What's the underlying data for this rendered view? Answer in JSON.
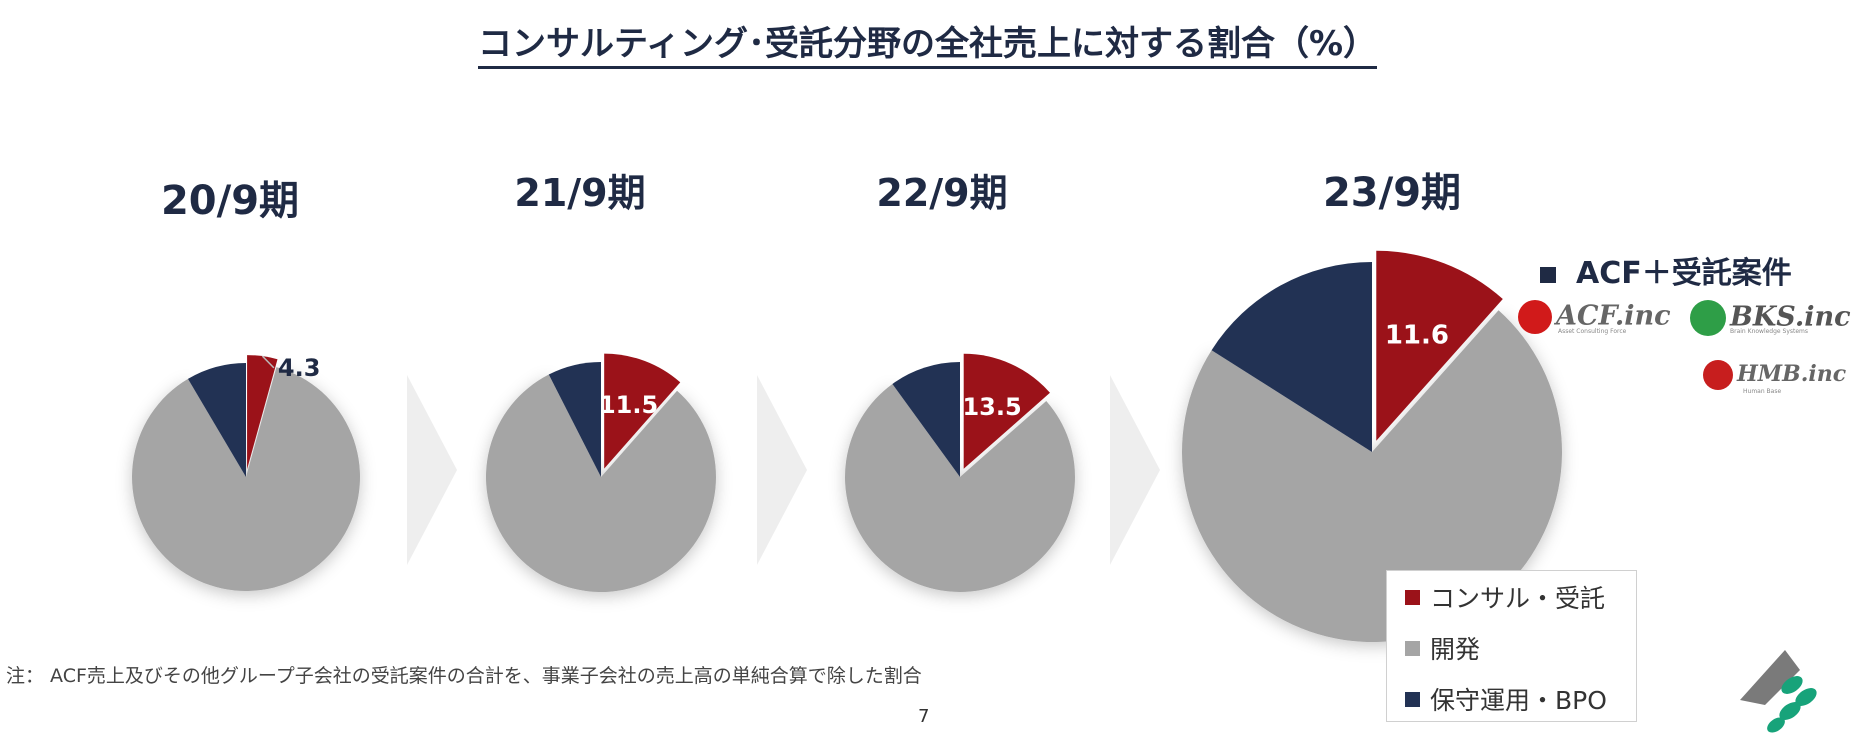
{
  "title": "コンサルティング･受託分野の全社売上に対する割合（%）",
  "colors": {
    "consulting": "#9b1219",
    "development": "#a5a5a5",
    "maintenance": "#223254",
    "arrow": "#eeeeee"
  },
  "chart_data": [
    {
      "type": "pie",
      "title": "20/9期",
      "slices": [
        {
          "name": "コンサル・受託",
          "value": 4.3,
          "label": "4.3"
        },
        {
          "name": "開発",
          "value": 87.2
        },
        {
          "name": "保守運用・BPO",
          "value": 8.5
        }
      ]
    },
    {
      "type": "pie",
      "title": "21/9期",
      "slices": [
        {
          "name": "コンサル・受託",
          "value": 11.5,
          "label": "11.5"
        },
        {
          "name": "開発",
          "value": 81.0
        },
        {
          "name": "保守運用・BPO",
          "value": 7.5
        }
      ]
    },
    {
      "type": "pie",
      "title": "22/9期",
      "slices": [
        {
          "name": "コンサル・受託",
          "value": 13.5,
          "label": "13.5"
        },
        {
          "name": "開発",
          "value": 76.5
        },
        {
          "name": "保守運用・BPO",
          "value": 10.0
        }
      ]
    },
    {
      "type": "pie",
      "title": "23/9期",
      "slices": [
        {
          "name": "コンサル・受託",
          "value": 11.6,
          "label": "11.6"
        },
        {
          "name": "開発",
          "value": 72.4
        },
        {
          "name": "保守運用・BPO",
          "value": 16.0
        }
      ]
    }
  ],
  "legend": [
    {
      "label": "コンサル・受託",
      "color": "#9b1219"
    },
    {
      "label": "開発",
      "color": "#a5a5a5"
    },
    {
      "label": "保守運用・BPO",
      "color": "#223254"
    }
  ],
  "acf_label": "ACF＋受託案件",
  "logos": [
    {
      "name": "ACF.inc",
      "sub": "Asset Consulting Force"
    },
    {
      "name": "BKS.inc",
      "sub": "Brain Knowledge Systems"
    },
    {
      "name": "HMB.inc",
      "sub": "Human Base"
    }
  ],
  "note": "注：  ACF売上及びその他グループ子会社の受託案件の合計を、事業子会社の売上高の単純合算で除した割合",
  "page_number": "7"
}
